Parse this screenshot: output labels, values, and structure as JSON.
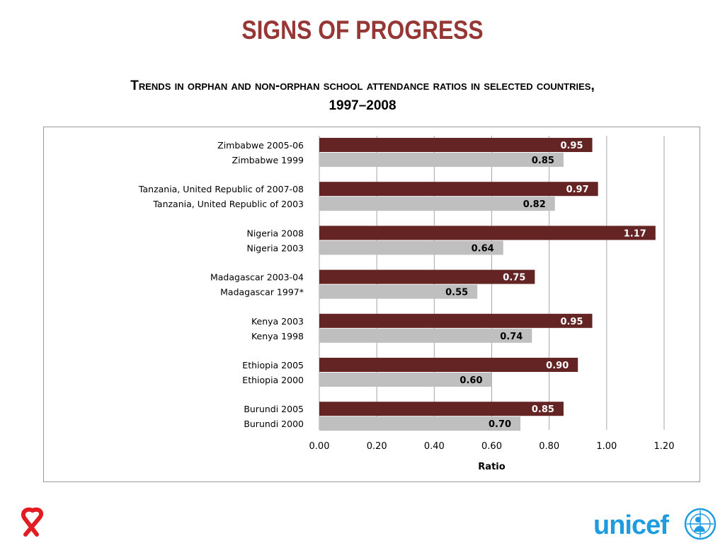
{
  "slide": {
    "title": "SIGNS OF PROGRESS",
    "subtitle_line1": "Trends in orphan and non-orphan school attendance ratios in selected countries,",
    "subtitle_line2": "1997–2008"
  },
  "colors": {
    "title": "#953735",
    "recent_bar": "#632423",
    "earlier_bar": "#bfbfbf",
    "gridline": "#a6a6a6",
    "unicef_blue": "#1f9ce0",
    "ribbon_red": "#e31b23"
  },
  "logos": {
    "unicef": "unicef"
  },
  "icons": {
    "ribbon": "red-ribbon-icon",
    "unicef_emblem": "un-globe-emblem-icon"
  },
  "chart_data": {
    "type": "bar",
    "orientation": "horizontal",
    "xlabel": "Ratio",
    "xlim": [
      0,
      1.2
    ],
    "xticks": [
      "0.00",
      "0.20",
      "0.40",
      "0.60",
      "0.80",
      "1.00",
      "1.20"
    ],
    "grid": "vertical",
    "legend": "none",
    "groups": [
      {
        "country": "Zimbabwe",
        "recent": {
          "label": "Zimbabwe 2005-06",
          "value": 0.95
        },
        "earlier": {
          "label": "Zimbabwe 1999",
          "value": 0.85
        }
      },
      {
        "country": "Tanzania",
        "recent": {
          "label": "Tanzania, United Republic of 2007-08",
          "value": 0.97
        },
        "earlier": {
          "label": "Tanzania, United Republic of 2003",
          "value": 0.82
        }
      },
      {
        "country": "Nigeria",
        "recent": {
          "label": "Nigeria 2008",
          "value": 1.17
        },
        "earlier": {
          "label": "Nigeria 2003",
          "value": 0.64
        }
      },
      {
        "country": "Madagascar",
        "recent": {
          "label": "Madagascar 2003-04",
          "value": 0.75
        },
        "earlier": {
          "label": "Madagascar 1997*",
          "value": 0.55
        }
      },
      {
        "country": "Kenya",
        "recent": {
          "label": "Kenya 2003",
          "value": 0.95
        },
        "earlier": {
          "label": "Kenya 1998",
          "value": 0.74
        }
      },
      {
        "country": "Ethiopia",
        "recent": {
          "label": "Ethiopia 2005",
          "value": 0.9
        },
        "earlier": {
          "label": "Ethiopia 2000",
          "value": 0.6
        }
      },
      {
        "country": "Burundi",
        "recent": {
          "label": "Burundi 2005",
          "value": 0.85
        },
        "earlier": {
          "label": "Burundi 2000",
          "value": 0.7
        }
      }
    ]
  }
}
